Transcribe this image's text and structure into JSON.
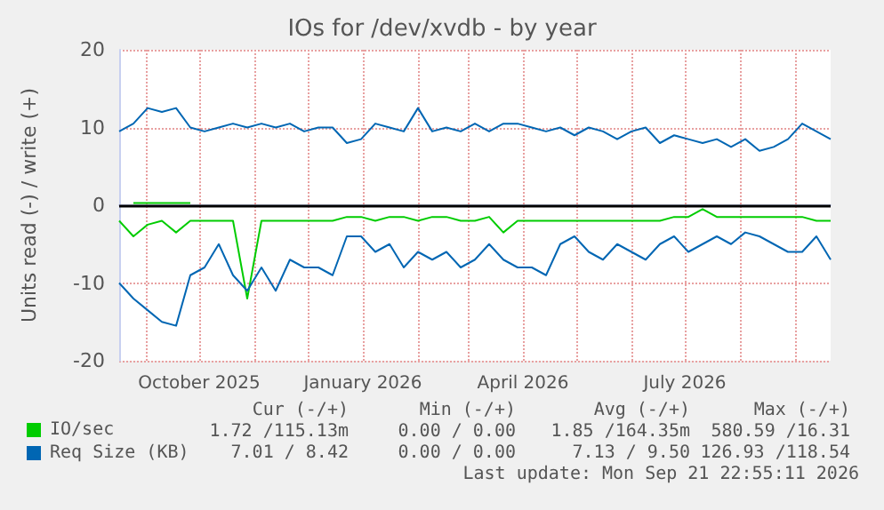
{
  "chart_data": {
    "type": "line",
    "title": "IOs for /dev/xvdb - by year",
    "ylabel": "Units read (-) / write (+)",
    "x": [
      "2025-08-17",
      "2025-08-25",
      "2025-09-02",
      "2025-09-10",
      "2025-09-18",
      "2025-09-26",
      "2025-10-04",
      "2025-10-12",
      "2025-10-20",
      "2025-10-28",
      "2025-11-05",
      "2025-11-13",
      "2025-11-21",
      "2025-11-29",
      "2025-12-07",
      "2025-12-15",
      "2025-12-23",
      "2025-12-31",
      "2026-01-08",
      "2026-01-16",
      "2026-01-24",
      "2026-02-01",
      "2026-02-09",
      "2026-02-17",
      "2026-02-25",
      "2026-03-05",
      "2026-03-13",
      "2026-03-21",
      "2026-03-29",
      "2026-04-06",
      "2026-04-14",
      "2026-04-22",
      "2026-04-30",
      "2026-05-08",
      "2026-05-16",
      "2026-05-24",
      "2026-06-01",
      "2026-06-09",
      "2026-06-17",
      "2026-06-25",
      "2026-07-03",
      "2026-07-11",
      "2026-07-19",
      "2026-07-27",
      "2026-08-04",
      "2026-08-12",
      "2026-08-20",
      "2026-08-28",
      "2026-09-05",
      "2026-09-13",
      "2026-09-21"
    ],
    "series": [
      {
        "name": "IO/sec",
        "color": "#00cc00",
        "values": [
          null,
          0.3,
          0.3,
          0.3,
          0.3,
          0.3,
          null,
          null,
          null,
          null,
          null,
          null,
          null,
          null,
          null,
          null,
          null,
          null,
          null,
          null,
          null,
          null,
          null,
          null,
          null,
          null,
          null,
          null,
          null,
          null,
          null,
          null,
          null,
          null,
          null,
          null,
          null,
          null,
          null,
          null,
          null,
          null,
          null,
          null,
          null,
          null,
          null,
          null,
          null,
          null,
          null
        ]
      },
      {
        "color": "#00cc00",
        "values": [
          -2,
          -4,
          -2.5,
          -2,
          -3.5,
          -2,
          -2,
          -2,
          -2,
          -12,
          -2,
          -2,
          -2,
          -2,
          -2,
          -2,
          -1.5,
          -1.5,
          -2,
          -1.5,
          -1.5,
          -2,
          -1.5,
          -1.5,
          -2,
          -2,
          -1.5,
          -3.5,
          -2,
          -2,
          -2,
          -2,
          -2,
          -2,
          -2,
          -2,
          -2,
          -2,
          -2,
          -1.5,
          -1.5,
          -0.5,
          -1.5,
          -1.5,
          -1.5,
          -1.5,
          -1.5,
          -1.5,
          -1.5,
          -2,
          -2
        ]
      },
      {
        "name": "Req Size (KB)",
        "color": "#0066b3",
        "values": [
          9.5,
          10.5,
          12.5,
          12,
          12.5,
          10,
          9.5,
          10,
          10.5,
          10,
          10.5,
          10,
          10.5,
          9.5,
          10,
          10,
          8,
          8.5,
          10.5,
          10,
          9.5,
          12.5,
          9.5,
          10,
          9.5,
          10.5,
          9.5,
          10.5,
          10.5,
          10,
          9.5,
          10,
          9,
          10,
          9.5,
          8.5,
          9.5,
          10,
          8,
          9,
          8.5,
          8,
          8.5,
          7.5,
          8.5,
          7,
          7.5,
          8.5,
          10.5,
          9.5,
          8.5
        ]
      },
      {
        "color": "#0066b3",
        "values": [
          -10,
          -12,
          -13.5,
          -15,
          -15.5,
          -9,
          -8,
          -5,
          -9,
          -11,
          -8,
          -11,
          -7,
          -8,
          -8,
          -9,
          -4,
          -4,
          -6,
          -5,
          -8,
          -6,
          -7,
          -6,
          -8,
          -7,
          -5,
          -7,
          -8,
          -8,
          -9,
          -5,
          -4,
          -6,
          -7,
          -5,
          -6,
          -7,
          -5,
          -4,
          -6,
          -5,
          -4,
          -5,
          -3.5,
          -4,
          -5,
          -6,
          -6,
          -4,
          -7
        ]
      }
    ],
    "xlim": [
      "2025-08-17",
      "2026-09-21"
    ],
    "xticks": [
      {
        "value": "2025-09-01",
        "label": null
      },
      {
        "value": "2025-10-01",
        "label": "October 2025"
      },
      {
        "value": "2025-11-01",
        "label": null
      },
      {
        "value": "2025-12-01",
        "label": null
      },
      {
        "value": "2026-01-01",
        "label": "January 2026"
      },
      {
        "value": "2026-02-01",
        "label": null
      },
      {
        "value": "2026-03-01",
        "label": null
      },
      {
        "value": "2026-04-01",
        "label": "April 2026"
      },
      {
        "value": "2026-05-01",
        "label": null
      },
      {
        "value": "2026-06-01",
        "label": null
      },
      {
        "value": "2026-07-01",
        "label": "July 2026"
      },
      {
        "value": "2026-08-01",
        "label": null
      },
      {
        "value": "2026-09-01",
        "label": null
      }
    ],
    "ylim": [
      -20,
      20
    ],
    "yticks": [
      -20,
      -10,
      0,
      10,
      20
    ],
    "ref_lines": [
      {
        "axis": "y",
        "value": 0,
        "color": "#000000"
      }
    ],
    "grid": true,
    "legend": "bottom left",
    "marker": "none",
    "line_style": "solid",
    "annotations": [
      "Cur (-/+)",
      "Min (-/+)",
      "Avg (-/+)",
      "Max (-/+)",
      "1.72 /115.13m",
      "0.00 / 0.00",
      "1.85 /164.35m",
      "580.59 /16.31",
      "7.01 / 8.42",
      "0.00 / 0.00",
      "7.13 / 9.50",
      "126.93 /118.54",
      "Last update: Mon Sep 21 22:55:11 2026"
    ]
  }
}
